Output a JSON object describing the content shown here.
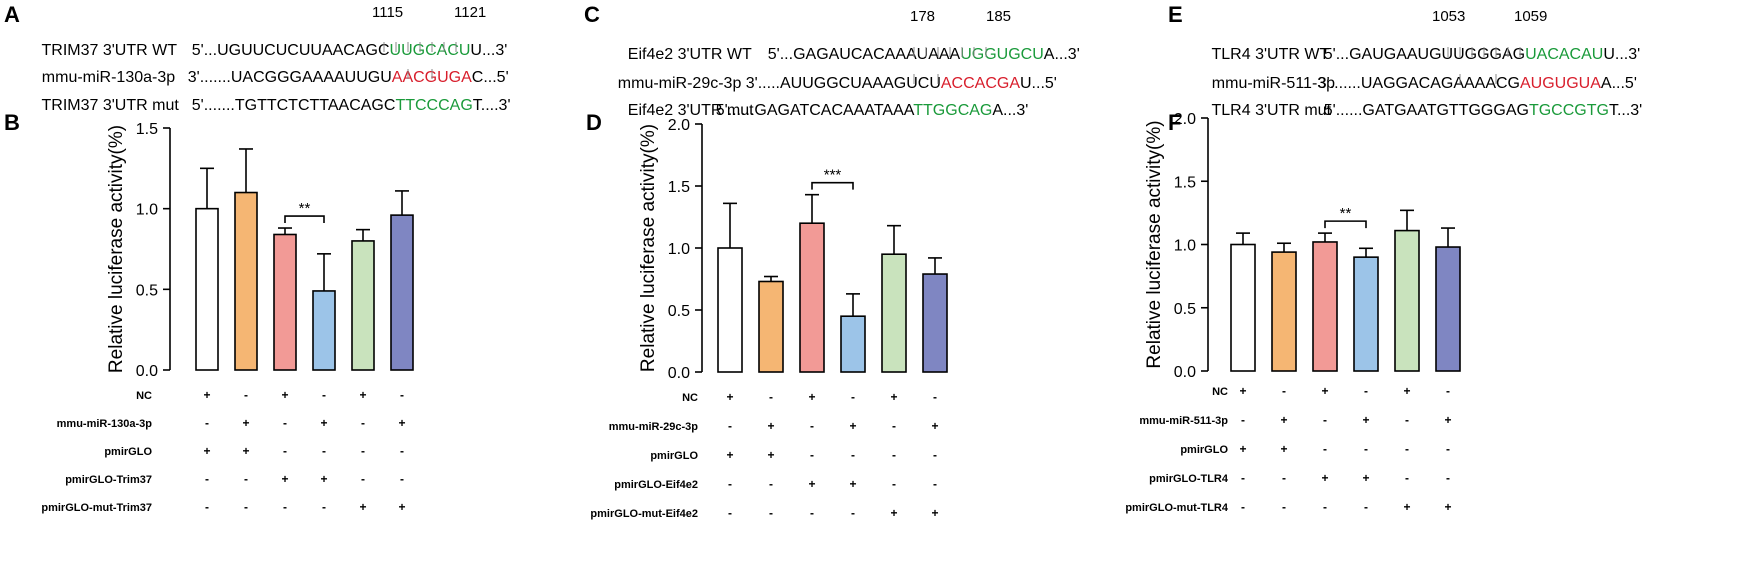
{
  "panels": [
    {
      "letter_top": "A",
      "letter_chart": "B",
      "pos_start": "1115",
      "pos_end": "1121",
      "rows": [
        {
          "label": "TRIM37 3'UTR WT",
          "prefix": "5'...UGUUCUCUUAACAGC",
          "site": "UUGCACU",
          "suffix": "U...3'",
          "site_color": "#1a9a3a"
        },
        {
          "label": "mmu-miR-130a-3p",
          "prefix": "3'.......UACGGGAAAAUUGU",
          "site": "AACGUGA",
          "suffix": "C...5'",
          "site_color": "#d81e2c"
        },
        {
          "label": "TRIM37 3'UTR mut",
          "prefix": "5'.......TGTTCTCTTAACAGC",
          "site": "TTCCCAG",
          "suffix": "T....3'",
          "site_color": "#1a9a3a"
        }
      ]
    },
    {
      "letter_top": "C",
      "letter_chart": "D",
      "pos_start": "178",
      "pos_end": "185",
      "rows": [
        {
          "label": "Eif4e2 3'UTR WT",
          "prefix": "5'...GAGAUCACAAAUAAA",
          "site": "UGGUGCU",
          "suffix": "A...3'",
          "site_color": "#1a9a3a"
        },
        {
          "label": "mmu-miR-29c-3p",
          "prefix": "3'.....AUUGGCUAAAGUCU",
          "site": "ACCACGA",
          "suffix": "U...5'",
          "site_color": "#d81e2c"
        },
        {
          "label": "Eif4e2 3'UTR mut",
          "prefix": "5'......GAGATCACAAATAAA",
          "site": "TTGGCAG",
          "suffix": "A...3'",
          "site_color": "#1a9a3a"
        }
      ]
    },
    {
      "letter_top": "E",
      "letter_chart": "F",
      "pos_start": "1053",
      "pos_end": "1059",
      "rows": [
        {
          "label": "TLR4 3'UTR WT",
          "prefix": "5'...GAUGAAUGUUGGGAG",
          "site": "UACACAU",
          "suffix": "U...3'",
          "site_color": "#1a9a3a"
        },
        {
          "label": "mmu-miR-511-3p",
          "prefix": "3'.......UAGGACAGAAAACG",
          "site": "AUGUGUA",
          "suffix": "A...5'",
          "site_color": "#d81e2c"
        },
        {
          "label": "TLR4 3'UTR mut",
          "prefix": "5'......GATGAATGTTGGGAG",
          "site": "TGCCGTG",
          "suffix": "T...3'",
          "site_color": "#1a9a3a"
        }
      ]
    }
  ],
  "chart_data": [
    {
      "type": "bar",
      "ylabel": "Relative luciferase activity(%)",
      "ylim": [
        0,
        1.5
      ],
      "yticks": [
        "0.0",
        "0.5",
        "1.0",
        "1.5"
      ],
      "values": [
        1.0,
        1.1,
        0.84,
        0.49,
        0.8,
        0.96
      ],
      "errors": [
        0.25,
        0.27,
        0.04,
        0.23,
        0.07,
        0.15
      ],
      "colors": [
        "#ffffff",
        "#f5b673",
        "#f29a96",
        "#9cc4e8",
        "#c9e3bd",
        "#7f86c2"
      ],
      "significance": {
        "from": 2,
        "to": 3,
        "label": "**"
      },
      "conditions": [
        {
          "name": "NC",
          "signs": [
            "+",
            "-",
            "+",
            "-",
            "+",
            "-"
          ]
        },
        {
          "name": "mmu-miR-130a-3p",
          "signs": [
            "-",
            "+",
            "-",
            "+",
            "-",
            "+"
          ]
        },
        {
          "name": "pmirGLO",
          "signs": [
            "+",
            "+",
            "-",
            "-",
            "-",
            "-"
          ]
        },
        {
          "name": "pmirGLO-Trim37",
          "signs": [
            "-",
            "-",
            "+",
            "+",
            "-",
            "-"
          ]
        },
        {
          "name": "pmirGLO-mut-Trim37",
          "signs": [
            "-",
            "-",
            "-",
            "-",
            "+",
            "+"
          ]
        }
      ]
    },
    {
      "type": "bar",
      "ylabel": "Relative luciferase activity(%)",
      "ylim": [
        0,
        2.0
      ],
      "yticks": [
        "0.0",
        "0.5",
        "1.0",
        "1.5",
        "2.0"
      ],
      "values": [
        1.0,
        0.73,
        1.2,
        0.45,
        0.95,
        0.79
      ],
      "errors": [
        0.36,
        0.04,
        0.23,
        0.18,
        0.23,
        0.13
      ],
      "colors": [
        "#ffffff",
        "#f5b673",
        "#f29a96",
        "#9cc4e8",
        "#c9e3bd",
        "#7f86c2"
      ],
      "significance": {
        "from": 2,
        "to": 3,
        "label": "***"
      },
      "conditions": [
        {
          "name": "NC",
          "signs": [
            "+",
            "-",
            "+",
            "-",
            "+",
            "-"
          ]
        },
        {
          "name": "mmu-miR-29c-3p",
          "signs": [
            "-",
            "+",
            "-",
            "+",
            "-",
            "+"
          ]
        },
        {
          "name": "pmirGLO",
          "signs": [
            "+",
            "+",
            "-",
            "-",
            "-",
            "-"
          ]
        },
        {
          "name": "pmirGLO-Eif4e2",
          "signs": [
            "-",
            "-",
            "+",
            "+",
            "-",
            "-"
          ]
        },
        {
          "name": "pmirGLO-mut-Eif4e2",
          "signs": [
            "-",
            "-",
            "-",
            "-",
            "+",
            "+"
          ]
        }
      ]
    },
    {
      "type": "bar",
      "ylabel": "Relative luciferase activity(%)",
      "ylim": [
        0,
        2.0
      ],
      "yticks": [
        "0.0",
        "0.5",
        "1.0",
        "1.5",
        "2.0"
      ],
      "values": [
        1.0,
        0.94,
        1.02,
        0.9,
        1.11,
        0.98
      ],
      "errors": [
        0.09,
        0.07,
        0.07,
        0.07,
        0.16,
        0.15
      ],
      "colors": [
        "#ffffff",
        "#f5b673",
        "#f29a96",
        "#9cc4e8",
        "#c9e3bd",
        "#7f86c2"
      ],
      "significance": {
        "from": 2,
        "to": 3,
        "label": "**"
      },
      "conditions": [
        {
          "name": "NC",
          "signs": [
            "+",
            "-",
            "+",
            "-",
            "+",
            "-"
          ]
        },
        {
          "name": "mmu-miR-511-3p",
          "signs": [
            "-",
            "+",
            "-",
            "+",
            "-",
            "+"
          ]
        },
        {
          "name": "pmirGLO",
          "signs": [
            "+",
            "+",
            "-",
            "-",
            "-",
            "-"
          ]
        },
        {
          "name": "pmirGLO-TLR4",
          "signs": [
            "-",
            "-",
            "+",
            "+",
            "-",
            "-"
          ]
        },
        {
          "name": "pmirGLO-mut-TLR4",
          "signs": [
            "-",
            "-",
            "-",
            "-",
            "+",
            "+"
          ]
        }
      ]
    }
  ]
}
